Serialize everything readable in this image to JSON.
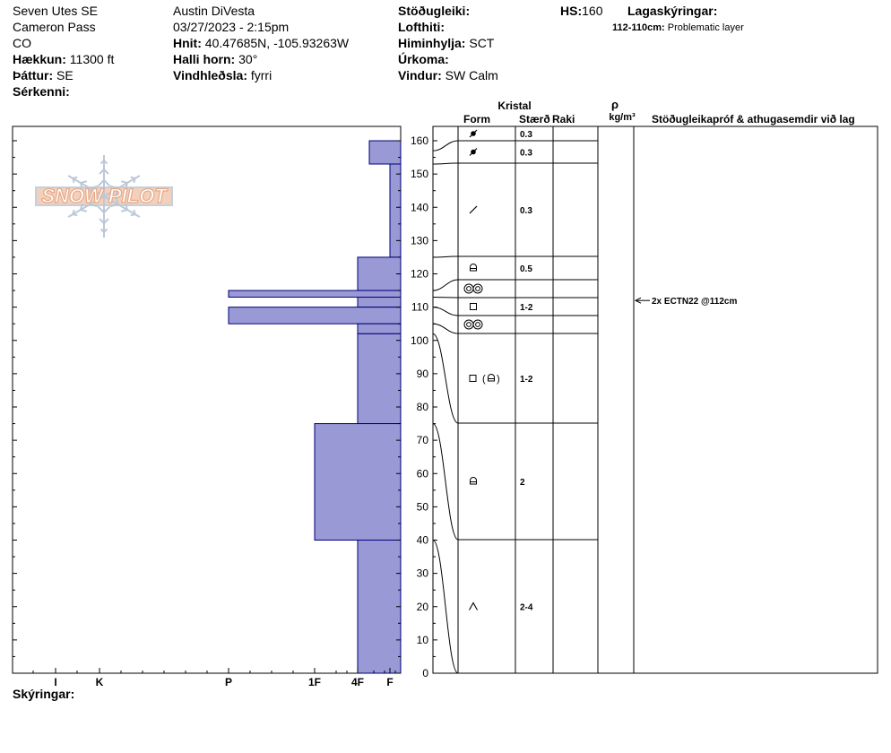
{
  "header": {
    "location": "Seven Utes SE",
    "area": "Cameron Pass",
    "state": "CO",
    "elevation_label": "Hækkun:",
    "elevation_value": "11300 ft",
    "aspect_label": "Þáttur:",
    "aspect_value": "SE",
    "features_label": "Sérkenni:",
    "observer": "Austin DiVesta",
    "datetime": "03/27/2023 - 2:15pm",
    "coords_label": "Hnit:",
    "coords_value": "40.47685N, -105.93263W",
    "slope_label": "Halli horn:",
    "slope_value": "30°",
    "wind_loading_label": "Vindhleðsla:",
    "wind_loading_value": "fyrri",
    "stability_label": "Stöðugleiki:",
    "air_temp_label": "Lofthiti:",
    "sky_label": "Himinhylja:",
    "sky_value": "SCT",
    "precip_label": "Úrkoma:",
    "wind_label": "Vindur:",
    "wind_value": "SW Calm",
    "hs_label": "HS:",
    "hs_value": "160",
    "layer_notes_label": "Lagaskýringar:",
    "layer_note_range": "112-110cm:",
    "layer_note_text": "Problematic layer"
  },
  "logo_text": "SNOW PILOT",
  "columns": {
    "crystal": "Kristal",
    "form": "Form",
    "size": "Stærð",
    "moisture": "Raki",
    "rho": "ρ",
    "density_unit": "kg/m³",
    "tests": "Stöðugleikapróf & athugasemdir við lag"
  },
  "legend_label": "Skýringar:",
  "test_annotation": "2x ECTN22 @112cm",
  "colors": {
    "bar_fill": "#9999d6",
    "bar_stroke": "#00007a"
  },
  "chart_data": {
    "type": "bar",
    "orientation": "horizontal",
    "description_axis": "height_cm",
    "ylim": [
      0,
      165
    ],
    "yticks": [
      0,
      10,
      20,
      30,
      40,
      50,
      60,
      70,
      80,
      90,
      100,
      110,
      120,
      130,
      140,
      150,
      160
    ],
    "hardness_ticks": [
      "I",
      "K",
      "P",
      "1F",
      "4F",
      "F"
    ],
    "layers": [
      {
        "bottom": 153,
        "top": 160,
        "hardness": 0.75,
        "form": "precip-icon",
        "size": "0.3"
      },
      {
        "bottom": 125,
        "top": 153,
        "hardness": 0.25,
        "form": "precip-icon",
        "size": "0.3"
      },
      {
        "bottom": 115,
        "top": 125,
        "hardness": 1.0,
        "form": "decomposing-icon",
        "size": "0.3"
      },
      {
        "bottom": 113,
        "top": 115,
        "hardness": 4.0,
        "form": "faceted-rounded-icon",
        "size": "0.5"
      },
      {
        "bottom": 110,
        "top": 113,
        "hardness": 1.0,
        "form": "melt-forms-icon",
        "size": ""
      },
      {
        "bottom": 105,
        "top": 110,
        "hardness": 4.0,
        "form": "faceted-icon",
        "size": "1-2"
      },
      {
        "bottom": 102,
        "top": 105,
        "hardness": 1.0,
        "form": "melt-forms-icon",
        "size": ""
      },
      {
        "bottom": 75,
        "top": 102,
        "hardness": 1.0,
        "form": "faceted-rounding-icon",
        "size": "1-2"
      },
      {
        "bottom": 40,
        "top": 75,
        "hardness": 2.0,
        "form": "faceted-rounded-icon",
        "size": "2"
      },
      {
        "bottom": 0,
        "top": 40,
        "hardness": 1.0,
        "form": "depth-hoar-icon",
        "size": "2-4"
      }
    ],
    "tests": [
      {
        "depth": 112,
        "label": "2x ECTN22 @112cm"
      }
    ]
  }
}
